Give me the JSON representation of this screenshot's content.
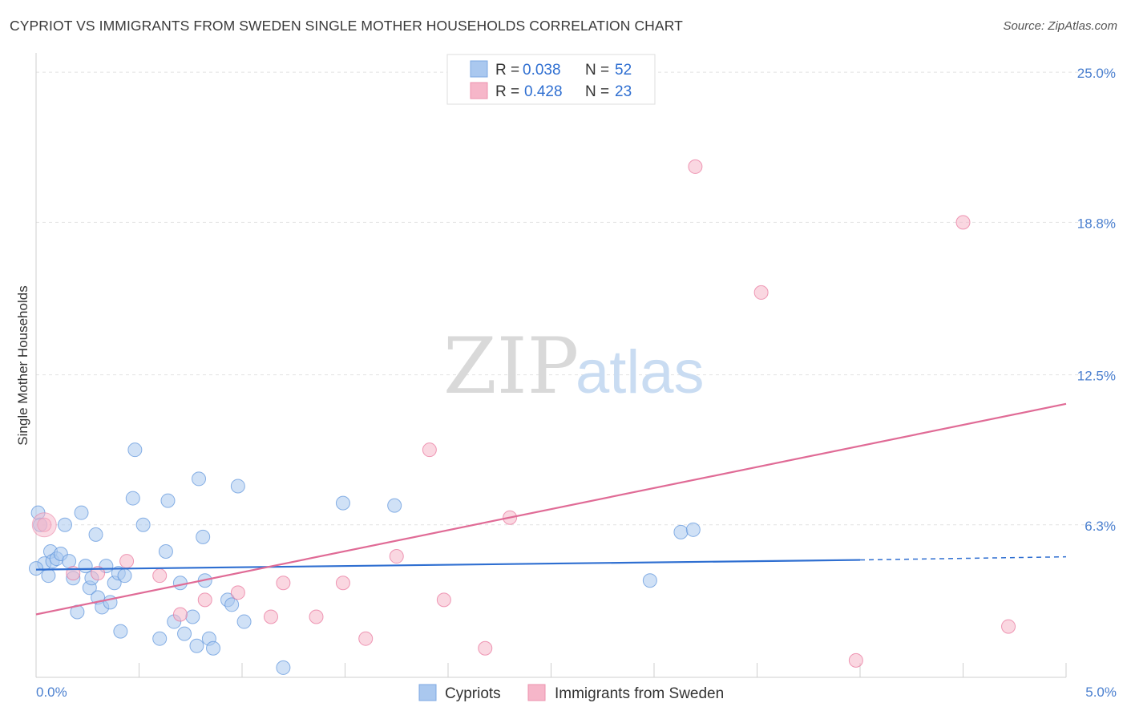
{
  "header": {
    "title": "CYPRIOT VS IMMIGRANTS FROM SWEDEN SINGLE MOTHER HOUSEHOLDS CORRELATION CHART",
    "source": "Source: ZipAtlas.com"
  },
  "watermark": {
    "zip": "ZIP",
    "atlas": "atlas"
  },
  "legend": {
    "r_label": "R =",
    "n_label": "N =",
    "items": [
      {
        "r": "0.038",
        "n": "52",
        "color": "#aac8ef"
      },
      {
        "r": "0.428",
        "n": "23",
        "color": "#f6b6c9"
      }
    ]
  },
  "bottom_legend": [
    {
      "label": "Cypriots",
      "color": "#aac8ef"
    },
    {
      "label": "Immigrants from Sweden",
      "color": "#f6b6c9"
    }
  ],
  "chart_data": {
    "type": "scatter",
    "title": "CYPRIOT VS IMMIGRANTS FROM SWEDEN SINGLE MOTHER HOUSEHOLDS CORRELATION CHART",
    "xlabel": "",
    "ylabel": "Single Mother Households",
    "xlim": [
      0,
      5
    ],
    "ylim": [
      0,
      25.8
    ],
    "x_tick_labels": [
      {
        "value": 0,
        "label": "0.0%"
      },
      {
        "value": 5,
        "label": "5.0%"
      }
    ],
    "y_tick_labels": [
      {
        "value": 6.3,
        "label": "6.3%"
      },
      {
        "value": 12.5,
        "label": "12.5%"
      },
      {
        "value": 18.8,
        "label": "18.8%"
      },
      {
        "value": 25.0,
        "label": "25.0%"
      }
    ],
    "grid": true,
    "legend_position": "top-center",
    "series": [
      {
        "name": "Cypriots",
        "color": "#5b93dc",
        "fill": "#aac8ef",
        "trend": {
          "x": [
            0,
            4.0
          ],
          "y": [
            4.45,
            4.85
          ],
          "dashed_x": [
            4.0,
            5.0
          ],
          "dashed_y": [
            4.85,
            4.98
          ]
        },
        "points": [
          [
            0.01,
            6.8
          ],
          [
            0.02,
            6.3
          ],
          [
            0.04,
            4.7
          ],
          [
            0.06,
            4.2
          ],
          [
            0.07,
            5.2
          ],
          [
            0.08,
            4.8
          ],
          [
            0.1,
            4.9
          ],
          [
            0.12,
            5.1
          ],
          [
            0.14,
            6.3
          ],
          [
            0.16,
            4.8
          ],
          [
            0.18,
            4.1
          ],
          [
            0.2,
            2.7
          ],
          [
            0.22,
            6.8
          ],
          [
            0.24,
            4.6
          ],
          [
            0.26,
            3.7
          ],
          [
            0.27,
            4.1
          ],
          [
            0.29,
            5.9
          ],
          [
            0.3,
            3.3
          ],
          [
            0.32,
            2.9
          ],
          [
            0.34,
            4.6
          ],
          [
            0.36,
            3.1
          ],
          [
            0.38,
            3.9
          ],
          [
            0.4,
            4.3
          ],
          [
            0.41,
            1.9
          ],
          [
            0.43,
            4.2
          ],
          [
            0.47,
            7.4
          ],
          [
            0.48,
            9.4
          ],
          [
            0.52,
            6.3
          ],
          [
            0.6,
            1.6
          ],
          [
            0.63,
            5.2
          ],
          [
            0.64,
            7.3
          ],
          [
            0.67,
            2.3
          ],
          [
            0.7,
            3.9
          ],
          [
            0.72,
            1.8
          ],
          [
            0.76,
            2.5
          ],
          [
            0.78,
            1.3
          ],
          [
            0.79,
            8.2
          ],
          [
            0.81,
            5.8
          ],
          [
            0.82,
            4.0
          ],
          [
            0.84,
            1.6
          ],
          [
            0.86,
            1.2
          ],
          [
            0.93,
            3.2
          ],
          [
            0.95,
            3.0
          ],
          [
            0.98,
            7.9
          ],
          [
            1.01,
            2.3
          ],
          [
            1.2,
            0.4
          ],
          [
            1.49,
            7.2
          ],
          [
            1.74,
            7.1
          ],
          [
            2.98,
            4.0
          ],
          [
            3.13,
            6.0
          ],
          [
            3.19,
            6.1
          ],
          [
            0.0,
            4.5
          ]
        ]
      },
      {
        "name": "Immigrants from Sweden",
        "color": "#e8729a",
        "fill": "#f6b6c9",
        "trend": {
          "x": [
            0,
            5.0
          ],
          "y": [
            2.6,
            11.3
          ]
        },
        "points": [
          [
            0.04,
            6.3
          ],
          [
            0.18,
            4.3
          ],
          [
            0.3,
            4.3
          ],
          [
            0.44,
            4.8
          ],
          [
            0.6,
            4.2
          ],
          [
            0.7,
            2.6
          ],
          [
            0.82,
            3.2
          ],
          [
            0.98,
            3.5
          ],
          [
            1.14,
            2.5
          ],
          [
            1.2,
            3.9
          ],
          [
            1.36,
            2.5
          ],
          [
            1.49,
            3.9
          ],
          [
            1.6,
            1.6
          ],
          [
            1.75,
            5.0
          ],
          [
            1.91,
            9.4
          ],
          [
            1.98,
            3.2
          ],
          [
            2.18,
            1.2
          ],
          [
            2.3,
            6.6
          ],
          [
            3.2,
            21.1
          ],
          [
            3.52,
            15.9
          ],
          [
            3.98,
            0.7
          ],
          [
            4.5,
            18.8
          ],
          [
            4.72,
            2.1
          ]
        ]
      }
    ]
  }
}
